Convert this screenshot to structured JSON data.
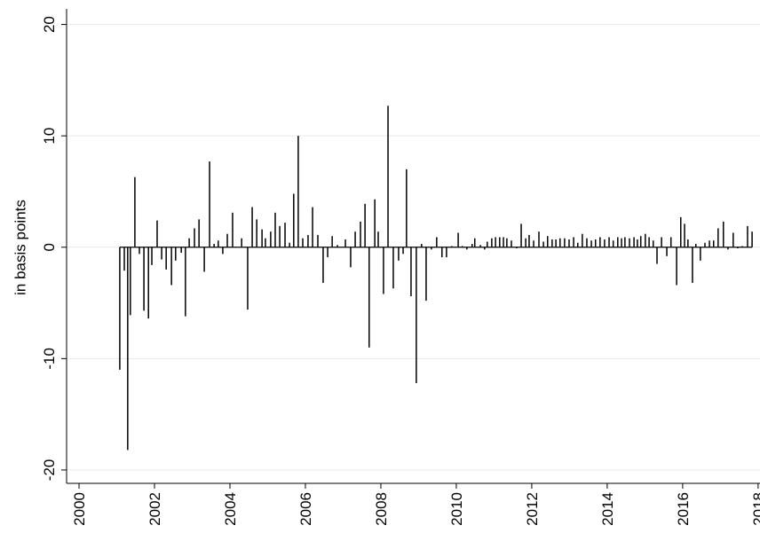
{
  "chart_data": {
    "type": "spike",
    "y_label": "in basis points",
    "color": "#000000",
    "grid": true,
    "xlim": [
      1999.67,
      2018.05
    ],
    "xticks": [
      2000,
      2002,
      2004,
      2006,
      2008,
      2010,
      2012,
      2014,
      2016,
      2018
    ],
    "ylim": [
      -21.2,
      21.4
    ],
    "yticks": [
      -20,
      -10,
      0,
      10,
      20
    ],
    "x": [
      2001.08,
      2001.2,
      2001.29,
      2001.36,
      2001.48,
      2001.6,
      2001.72,
      2001.84,
      2001.93,
      2002.07,
      2002.19,
      2002.31,
      2002.45,
      2002.56,
      2002.71,
      2002.82,
      2002.92,
      2003.06,
      2003.18,
      2003.32,
      2003.46,
      2003.58,
      2003.69,
      2003.81,
      2003.93,
      2004.07,
      2004.31,
      2004.47,
      2004.59,
      2004.71,
      2004.85,
      2004.94,
      2005.08,
      2005.2,
      2005.32,
      2005.46,
      2005.58,
      2005.69,
      2005.81,
      2005.93,
      2006.07,
      2006.19,
      2006.33,
      2006.47,
      2006.59,
      2006.71,
      2006.85,
      2007.06,
      2007.2,
      2007.32,
      2007.46,
      2007.58,
      2007.69,
      2007.84,
      2007.93,
      2008.07,
      2008.19,
      2008.33,
      2008.47,
      2008.59,
      2008.68,
      2008.8,
      2008.94,
      2009.08,
      2009.2,
      2009.34,
      2009.48,
      2009.62,
      2009.74,
      2009.88,
      2010.05,
      2010.16,
      2010.28,
      2010.42,
      2010.49,
      2010.64,
      2010.75,
      2010.82,
      2010.94,
      2011.04,
      2011.15,
      2011.25,
      2011.34,
      2011.46,
      2011.6,
      2011.72,
      2011.84,
      2011.93,
      2012.05,
      2012.19,
      2012.31,
      2012.42,
      2012.54,
      2012.64,
      2012.75,
      2012.87,
      2012.99,
      2013.11,
      2013.22,
      2013.34,
      2013.46,
      2013.58,
      2013.69,
      2013.81,
      2013.93,
      2014.05,
      2014.16,
      2014.28,
      2014.38,
      2014.47,
      2014.59,
      2014.71,
      2014.8,
      2014.89,
      2015.01,
      2015.11,
      2015.22,
      2015.32,
      2015.44,
      2015.58,
      2015.69,
      2015.84,
      2015.95,
      2016.05,
      2016.14,
      2016.26,
      2016.35,
      2016.47,
      2016.59,
      2016.71,
      2016.82,
      2016.94,
      2017.08,
      2017.2,
      2017.34,
      2017.46,
      2017.58,
      2017.72,
      2017.84
    ],
    "values": [
      -11.0,
      -2.1,
      -18.2,
      -6.1,
      6.3,
      -0.6,
      -5.7,
      -6.4,
      -1.6,
      2.4,
      -1.1,
      -2.0,
      -3.4,
      -1.2,
      -0.5,
      -6.2,
      0.8,
      1.7,
      2.5,
      -2.2,
      7.7,
      0.3,
      0.6,
      -0.6,
      1.2,
      3.1,
      0.8,
      -5.6,
      3.6,
      2.5,
      1.6,
      0.8,
      1.4,
      3.1,
      1.9,
      2.2,
      0.4,
      4.8,
      10.0,
      0.8,
      1.1,
      3.6,
      1.1,
      -3.2,
      -0.9,
      1.0,
      0.2,
      0.7,
      -1.8,
      1.4,
      2.3,
      3.9,
      -9.0,
      4.3,
      1.4,
      -4.2,
      12.7,
      -3.7,
      -1.2,
      -0.6,
      7.0,
      -4.4,
      -12.2,
      0.3,
      -4.8,
      -0.2,
      0.9,
      -0.9,
      -0.9,
      0.1,
      1.3,
      0.1,
      -0.2,
      0.3,
      0.8,
      0.2,
      -0.2,
      0.5,
      0.8,
      0.9,
      0.9,
      0.9,
      0.8,
      0.6,
      -0.1,
      2.1,
      0.8,
      1.1,
      0.6,
      1.4,
      0.5,
      1.0,
      0.7,
      0.7,
      0.8,
      0.8,
      0.7,
      0.9,
      0.4,
      1.2,
      0.8,
      0.6,
      0.7,
      0.9,
      0.7,
      0.9,
      0.6,
      0.9,
      0.8,
      0.9,
      0.8,
      0.9,
      0.7,
      1.0,
      1.2,
      0.9,
      0.6,
      -1.5,
      0.9,
      -0.8,
      0.9,
      -3.4,
      2.7,
      2.1,
      0.7,
      -3.2,
      0.3,
      -1.2,
      0.4,
      0.6,
      0.6,
      1.7,
      2.3,
      -0.2,
      1.3,
      -0.1,
      0.1,
      1.9,
      1.4
    ]
  }
}
